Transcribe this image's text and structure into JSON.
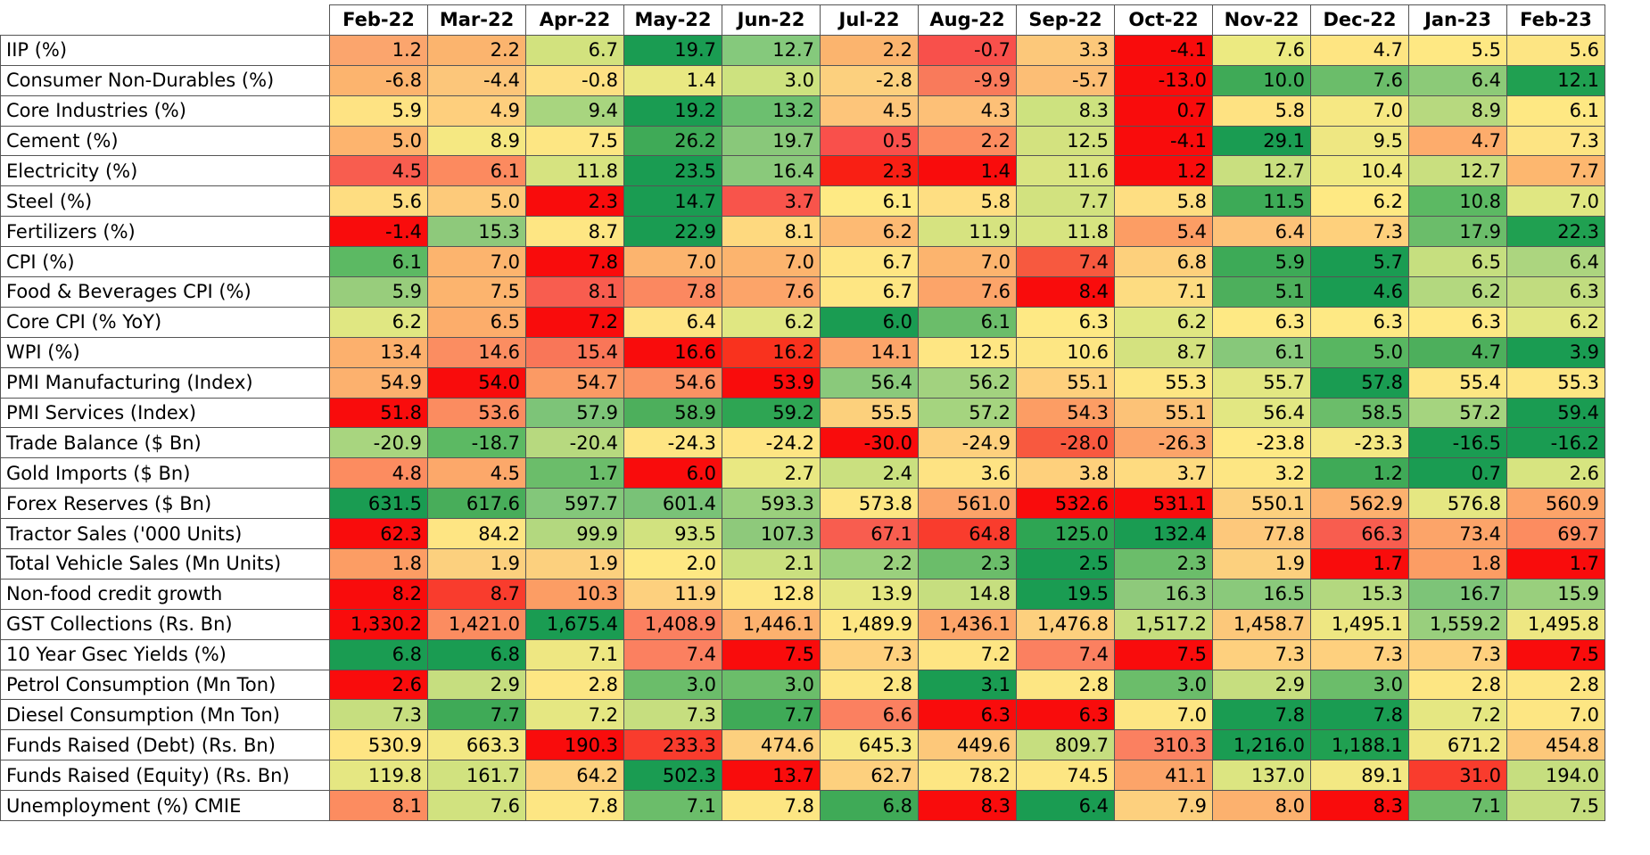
{
  "chart_data": {
    "type": "heatmap",
    "columns": [
      "Feb-22",
      "Mar-22",
      "Apr-22",
      "May-22",
      "Jun-22",
      "Jul-22",
      "Aug-22",
      "Sep-22",
      "Oct-22",
      "Nov-22",
      "Dec-22",
      "Jan-23",
      "Feb-23"
    ],
    "rows": [
      {
        "label": "IIP (%)",
        "values": [
          "1.2",
          "2.2",
          "6.7",
          "19.7",
          "12.7",
          "2.2",
          "-0.7",
          "3.3",
          "-4.1",
          "7.6",
          "4.7",
          "5.5",
          "5.6"
        ],
        "colors": [
          "#fba56d",
          "#fbb46e",
          "#d2e27e",
          "#1a9c52",
          "#85c97c",
          "#fbb46e",
          "#f8504b",
          "#fcc87a",
          "#f90c0c",
          "#ecea81",
          "#fee582",
          "#fee883",
          "#fde583"
        ]
      },
      {
        "label": "Consumer Non-Durables (%)",
        "values": [
          "-6.8",
          "-4.4",
          "-0.8",
          "1.4",
          "3.0",
          "-2.8",
          "-9.9",
          "-5.7",
          "-13.0",
          "10.0",
          "7.6",
          "6.4",
          "12.1"
        ],
        "colors": [
          "#fcb46e",
          "#fcc67a",
          "#fde083",
          "#e9e882",
          "#cde27f",
          "#fcd07e",
          "#f97a5b",
          "#fcbe75",
          "#f90c0c",
          "#3faa57",
          "#6bbd6a",
          "#8cca78",
          "#20a051"
        ]
      },
      {
        "label": "Core Industries (%)",
        "values": [
          "5.9",
          "4.9",
          "9.4",
          "19.2",
          "13.2",
          "4.5",
          "4.3",
          "8.3",
          "0.7",
          "5.8",
          "7.0",
          "8.9",
          "6.1"
        ],
        "colors": [
          "#fee383",
          "#fecf7d",
          "#a8d57f",
          "#1a9c52",
          "#6cbf6f",
          "#fdc57a",
          "#fdc077",
          "#cde27f",
          "#f90c0c",
          "#fee282",
          "#f6e883",
          "#b7d97f",
          "#fee883"
        ]
      },
      {
        "label": "Cement (%)",
        "values": [
          "5.0",
          "8.9",
          "7.5",
          "26.2",
          "19.7",
          "0.5",
          "2.2",
          "12.5",
          "-4.1",
          "29.1",
          "9.5",
          "4.7",
          "7.3"
        ],
        "colors": [
          "#fdb46e",
          "#f5e882",
          "#fde683",
          "#3faa57",
          "#89c87a",
          "#f9504b",
          "#fc8c60",
          "#d3e27f",
          "#f90c0c",
          "#1a9c52",
          "#eee782",
          "#fdac6c",
          "#fde483"
        ]
      },
      {
        "label": "Electricity (%)",
        "values": [
          "4.5",
          "6.1",
          "11.8",
          "23.5",
          "16.4",
          "2.3",
          "1.4",
          "11.6",
          "1.2",
          "12.7",
          "10.4",
          "12.7",
          "7.7"
        ],
        "colors": [
          "#f85d4f",
          "#fc8a5f",
          "#d6e380",
          "#1a9c52",
          "#8ac97b",
          "#f91f14",
          "#f90c0c",
          "#d9e481",
          "#f90c0c",
          "#c9df7f",
          "#f0e982",
          "#c9df7f",
          "#fdb76f"
        ]
      },
      {
        "label": "Steel (%)",
        "values": [
          "5.6",
          "5.0",
          "2.3",
          "14.7",
          "3.7",
          "6.1",
          "5.8",
          "7.7",
          "5.8",
          "11.5",
          "6.2",
          "10.8",
          "7.0"
        ],
        "colors": [
          "#fedd81",
          "#fdca7a",
          "#f90c0c",
          "#1a9c52",
          "#f8544b",
          "#feea84",
          "#fede82",
          "#d2e27f",
          "#fede82",
          "#3daa57",
          "#fee983",
          "#5cb963",
          "#e0e782"
        ]
      },
      {
        "label": "Fertilizers (%)",
        "values": [
          "-1.4",
          "15.3",
          "8.7",
          "22.9",
          "8.1",
          "6.2",
          "11.9",
          "11.8",
          "5.4",
          "6.4",
          "7.3",
          "17.9",
          "22.3"
        ],
        "colors": [
          "#f90c0c",
          "#8ec97b",
          "#fee683",
          "#1a9c52",
          "#fed97f",
          "#fdba73",
          "#d6e380",
          "#d7e480",
          "#fc9d64",
          "#fdc278",
          "#fed07c",
          "#6bbd6a",
          "#20a051"
        ]
      },
      {
        "label": "CPI (%)",
        "values": [
          "6.1",
          "7.0",
          "7.8",
          "7.0",
          "7.0",
          "6.7",
          "7.0",
          "7.4",
          "6.8",
          "5.9",
          "5.7",
          "6.5",
          "6.4"
        ],
        "colors": [
          "#5cb963",
          "#fcb46e",
          "#f90c0c",
          "#fcb46e",
          "#fcb46e",
          "#fee683",
          "#fcb46e",
          "#f7593f",
          "#fdd07c",
          "#3daa57",
          "#1a9c52",
          "#c6df7f",
          "#acd57f"
        ]
      },
      {
        "label": "Food & Beverages CPI (%)",
        "values": [
          "5.9",
          "7.5",
          "8.1",
          "7.8",
          "7.6",
          "6.7",
          "7.6",
          "8.4",
          "7.1",
          "5.1",
          "4.6",
          "6.2",
          "6.3"
        ],
        "colors": [
          "#98cd7c",
          "#fcb46e",
          "#f85d4f",
          "#fb8860",
          "#fca469",
          "#fee683",
          "#fca469",
          "#f90c0c",
          "#fddc81",
          "#4daf5c",
          "#1a9c52",
          "#b3d87f",
          "#c1dc7f"
        ]
      },
      {
        "label": "Core CPI (% YoY)",
        "values": [
          "6.2",
          "6.5",
          "7.2",
          "6.4",
          "6.2",
          "6.0",
          "6.1",
          "6.3",
          "6.2",
          "6.3",
          "6.3",
          "6.3",
          "6.2"
        ],
        "colors": [
          "#e0e782",
          "#fcad6b",
          "#f90c0c",
          "#fee483",
          "#e0e782",
          "#1a9c52",
          "#6bbd6a",
          "#fee984",
          "#e0e782",
          "#fee984",
          "#fee984",
          "#fee984",
          "#e0e782"
        ]
      },
      {
        "label": "WPI (%)",
        "values": [
          "13.4",
          "14.6",
          "15.4",
          "16.6",
          "16.2",
          "14.1",
          "12.5",
          "10.6",
          "8.7",
          "6.1",
          "5.0",
          "4.7",
          "3.9"
        ],
        "colors": [
          "#fcb06d",
          "#fb8d61",
          "#f97658",
          "#f90c0c",
          "#f9321e",
          "#fca469",
          "#fee683",
          "#fde683",
          "#d4e27f",
          "#87c87a",
          "#58b661",
          "#4daf5c",
          "#1a9c52"
        ]
      },
      {
        "label": "PMI Manufacturing (Index)",
        "values": [
          "54.9",
          "54.0",
          "54.7",
          "54.6",
          "53.9",
          "56.4",
          "56.2",
          "55.1",
          "55.3",
          "55.7",
          "57.8",
          "55.4",
          "55.3"
        ],
        "colors": [
          "#fcb16e",
          "#f90c0c",
          "#fb9a64",
          "#fb9263",
          "#f90c0c",
          "#8ac97b",
          "#a2d27f",
          "#fed07d",
          "#fde683",
          "#e2e782",
          "#1a9c52",
          "#fde683",
          "#fde683"
        ]
      },
      {
        "label": "PMI Services (Index)",
        "values": [
          "51.8",
          "53.6",
          "57.9",
          "58.9",
          "59.2",
          "55.5",
          "57.2",
          "54.3",
          "55.1",
          "56.4",
          "58.5",
          "57.2",
          "59.4"
        ],
        "colors": [
          "#f90c0c",
          "#fb8c60",
          "#7dc478",
          "#4daf5c",
          "#2ea553",
          "#fcd07c",
          "#a5d47f",
          "#fc9d64",
          "#fcc277",
          "#e2e782",
          "#6bbd6a",
          "#a5d47f",
          "#1a9c52"
        ]
      },
      {
        "label": "Trade Balance ($ Bn)",
        "values": [
          "-20.9",
          "-18.7",
          "-20.4",
          "-24.3",
          "-24.2",
          "-30.0",
          "-24.9",
          "-28.0",
          "-26.3",
          "-23.8",
          "-23.3",
          "-16.5",
          "-16.2"
        ],
        "colors": [
          "#a8d57f",
          "#5cb963",
          "#b7d97f",
          "#fee583",
          "#fee583",
          "#f90c0c",
          "#fdd07d",
          "#f8593f",
          "#fca469",
          "#fee984",
          "#f4e883",
          "#1a9c52",
          "#1a9c52"
        ]
      },
      {
        "label": "Gold Imports ($ Bn)",
        "values": [
          "4.8",
          "4.5",
          "1.7",
          "6.0",
          "2.7",
          "2.4",
          "3.6",
          "3.8",
          "3.7",
          "3.2",
          "1.2",
          "0.7",
          "2.6"
        ],
        "colors": [
          "#fc8c60",
          "#fca86a",
          "#6bbd6a",
          "#f90c0c",
          "#e9e882",
          "#cae07f",
          "#fee383",
          "#fed07c",
          "#fedb80",
          "#fde683",
          "#3faa57",
          "#1a9c52",
          "#d7e480"
        ]
      },
      {
        "label": "Forex Reserves ($ Bn)",
        "values": [
          "631.5",
          "617.6",
          "597.7",
          "601.4",
          "593.3",
          "573.8",
          "561.0",
          "532.6",
          "531.1",
          "550.1",
          "562.9",
          "576.8",
          "560.9"
        ],
        "colors": [
          "#1a9c52",
          "#48ad5a",
          "#83c77a",
          "#79c277",
          "#9ad07d",
          "#fde683",
          "#fca469",
          "#f90c0c",
          "#f90c0c",
          "#fcd07e",
          "#fcb16e",
          "#e5e782",
          "#fca469"
        ]
      },
      {
        "label": "Tractor Sales ('000 Units)",
        "values": [
          "62.3",
          "84.2",
          "99.9",
          "93.5",
          "107.3",
          "67.1",
          "64.8",
          "125.0",
          "132.4",
          "77.8",
          "66.3",
          "73.4",
          "69.7"
        ],
        "colors": [
          "#f90c0c",
          "#fee583",
          "#b3d87f",
          "#d1e27f",
          "#8ec97b",
          "#f85d4f",
          "#f93c2d",
          "#2ea553",
          "#1a9c52",
          "#fdc87b",
          "#f85d4f",
          "#fca469",
          "#fc8c60"
        ]
      },
      {
        "label": "Total Vehicle Sales (Mn Units)",
        "values": [
          "1.8",
          "1.9",
          "1.9",
          "2.0",
          "2.1",
          "2.2",
          "2.3",
          "2.5",
          "2.3",
          "1.9",
          "1.7",
          "1.8",
          "1.7"
        ],
        "colors": [
          "#fc9d64",
          "#fcd07e",
          "#fcd07e",
          "#fee883",
          "#cae07f",
          "#9ad07d",
          "#6bbd6a",
          "#1a9c52",
          "#6bbd6a",
          "#fcd07e",
          "#f90c0c",
          "#fc9d64",
          "#f90c0c"
        ]
      },
      {
        "label": "Non-food credit growth",
        "values": [
          "8.2",
          "8.7",
          "10.3",
          "11.9",
          "12.8",
          "13.9",
          "14.8",
          "19.5",
          "16.3",
          "16.5",
          "15.3",
          "16.7",
          "15.9"
        ],
        "colors": [
          "#f90c0c",
          "#f93c2d",
          "#fc9d64",
          "#fdd07e",
          "#fde683",
          "#e5e782",
          "#c6de7f",
          "#1a9c52",
          "#8ec97b",
          "#8ac97b",
          "#b3d87f",
          "#7dc478",
          "#99cf7d"
        ]
      },
      {
        "label": "GST Collections (Rs. Bn)",
        "values": [
          "1,330.2",
          "1,421.0",
          "1,675.4",
          "1,408.9",
          "1,446.1",
          "1,489.9",
          "1,436.1",
          "1,476.8",
          "1,517.2",
          "1,458.7",
          "1,495.1",
          "1,559.2",
          "1,495.8"
        ],
        "colors": [
          "#f90c0c",
          "#fb8c60",
          "#1a9c52",
          "#fb8060",
          "#fcb16e",
          "#fde683",
          "#fca469",
          "#fdd07e",
          "#c6de7f",
          "#fcc87a",
          "#eee782",
          "#99cf7d",
          "#eee782"
        ]
      },
      {
        "label": "10 Year Gsec Yields (%)",
        "values": [
          "6.8",
          "6.8",
          "7.1",
          "7.4",
          "7.5",
          "7.3",
          "7.2",
          "7.4",
          "7.5",
          "7.3",
          "7.3",
          "7.3",
          "7.5"
        ],
        "colors": [
          "#1a9c52",
          "#1a9c52",
          "#eee782",
          "#fb8060",
          "#f90c0c",
          "#fed07e",
          "#fee583",
          "#fb8060",
          "#f90c0c",
          "#fed07e",
          "#fed07e",
          "#fed07e",
          "#f90c0c"
        ]
      },
      {
        "label": "Petrol Consumption (Mn Ton)",
        "values": [
          "2.6",
          "2.9",
          "2.8",
          "3.0",
          "3.0",
          "2.8",
          "3.1",
          "2.8",
          "3.0",
          "2.9",
          "3.0",
          "2.8",
          "2.8"
        ],
        "colors": [
          "#f90c0c",
          "#c6de7f",
          "#fde683",
          "#6bbd6a",
          "#6bbd6a",
          "#fde683",
          "#1a9c52",
          "#fde683",
          "#6bbd6a",
          "#c6de7f",
          "#6bbd6a",
          "#fde683",
          "#fde683"
        ]
      },
      {
        "label": "Diesel Consumption (Mn Ton)",
        "values": [
          "7.3",
          "7.7",
          "7.2",
          "7.3",
          "7.7",
          "6.6",
          "6.3",
          "6.3",
          "7.0",
          "7.8",
          "7.8",
          "7.2",
          "7.0"
        ],
        "colors": [
          "#c6de7f",
          "#3faa57",
          "#e5e782",
          "#c6de7f",
          "#3faa57",
          "#fb8060",
          "#f90c0c",
          "#f90c0c",
          "#fde683",
          "#1a9c52",
          "#1a9c52",
          "#e5e782",
          "#fde683"
        ]
      },
      {
        "label": "Funds Raised (Debt) (Rs. Bn)",
        "values": [
          "530.9",
          "663.3",
          "190.3",
          "233.3",
          "474.6",
          "645.3",
          "449.6",
          "809.7",
          "310.3",
          "1,216.0",
          "1,188.1",
          "671.2",
          "454.8"
        ],
        "colors": [
          "#fee583",
          "#f3e883",
          "#f90c0c",
          "#f93c2d",
          "#fcd07e",
          "#f7e883",
          "#fdc87a",
          "#c6de7f",
          "#fb8060",
          "#1a9c52",
          "#20a051",
          "#f0e782",
          "#fdc87a"
        ]
      },
      {
        "label": "Funds Raised (Equity) (Rs. Bn)",
        "values": [
          "119.8",
          "161.7",
          "64.2",
          "502.3",
          "13.7",
          "62.7",
          "78.2",
          "74.5",
          "41.1",
          "137.0",
          "89.1",
          "31.0",
          "194.0"
        ],
        "colors": [
          "#e5e782",
          "#d1e27f",
          "#fdd07e",
          "#1a9c52",
          "#f90c0c",
          "#fdd07e",
          "#fde683",
          "#fde683",
          "#fca469",
          "#dce581",
          "#f3e883",
          "#f93c2d",
          "#c6de7f"
        ]
      },
      {
        "label": "Unemployment (%) CMIE",
        "values": [
          "8.1",
          "7.6",
          "7.8",
          "7.1",
          "7.8",
          "6.8",
          "8.3",
          "6.4",
          "7.9",
          "8.0",
          "8.3",
          "7.1",
          "7.5"
        ],
        "colors": [
          "#fc8c60",
          "#d1e27f",
          "#fde683",
          "#6bbd6a",
          "#fde683",
          "#3faa57",
          "#f90c0c",
          "#1a9c52",
          "#fdd07e",
          "#fcb16e",
          "#f90c0c",
          "#6bbd6a",
          "#c6de7f"
        ]
      }
    ]
  }
}
